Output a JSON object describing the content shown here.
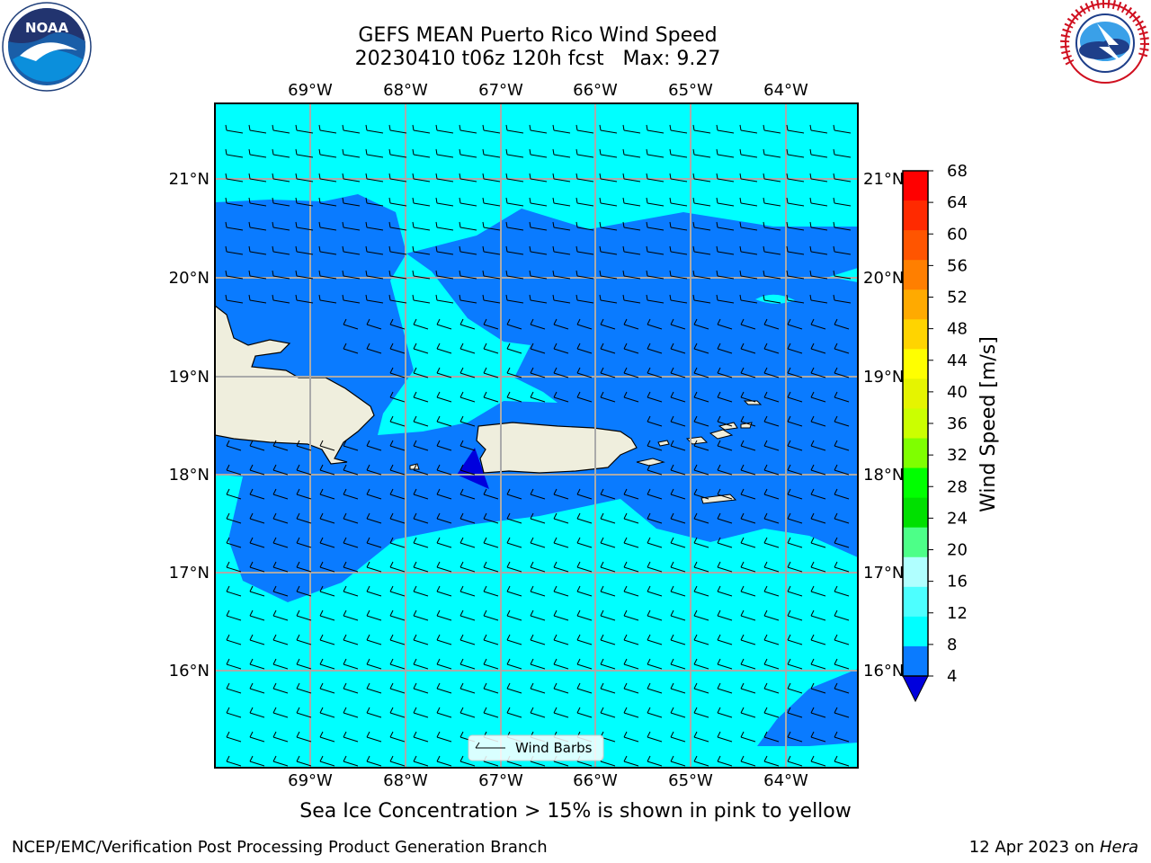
{
  "header": {
    "title_line1": "GEFS MEAN Puerto Rico Wind Speed",
    "title_line2": "20230410 t06z 120h fcst   Max: 9.27"
  },
  "logos": {
    "left": {
      "text": "NOAA",
      "ring_text": "NATIONAL OCEANIC AND ATMOSPHERIC ADMINISTRATION · U.S. DEPARTMENT OF COMMERCE"
    },
    "right": {
      "ring_text": "NATIONAL WEATHER SERVICE"
    }
  },
  "map": {
    "lon_labels": [
      "69°W",
      "68°W",
      "67°W",
      "66°W",
      "65°W",
      "64°W"
    ],
    "lat_labels": [
      "21°N",
      "20°N",
      "19°N",
      "18°N",
      "17°N",
      "16°N"
    ],
    "legend_label": "Wind Barbs",
    "colors": {
      "band_4_8": "#0a7bff",
      "band_8_12": "#00ffff",
      "below_4": "#0000dd",
      "land": "#efeedd",
      "grid": "#aaaaaa"
    }
  },
  "colorbar": {
    "label": "Wind Speed [m/s]",
    "ticks": [
      "68",
      "64",
      "60",
      "56",
      "52",
      "48",
      "44",
      "40",
      "36",
      "32",
      "28",
      "24",
      "20",
      "16",
      "12",
      "8",
      "4"
    ],
    "colors": [
      "#ff0000",
      "#ff2a00",
      "#ff5500",
      "#ff7f00",
      "#ffaa00",
      "#ffd400",
      "#ffff00",
      "#e5f400",
      "#cbff00",
      "#7fff00",
      "#00ff00",
      "#00e000",
      "#4dff88",
      "#b0ffff",
      "#4dffff",
      "#00ffff",
      "#0a7bff"
    ],
    "under_color": "#0000dd"
  },
  "footer": {
    "sea_ice_note": "Sea Ice Concentration > 15% is shown in pink to yellow",
    "credit": "NCEP/EMC/Verification Post Processing Product Generation Branch",
    "date": "12 Apr 2023 on ",
    "host": "Hera"
  }
}
